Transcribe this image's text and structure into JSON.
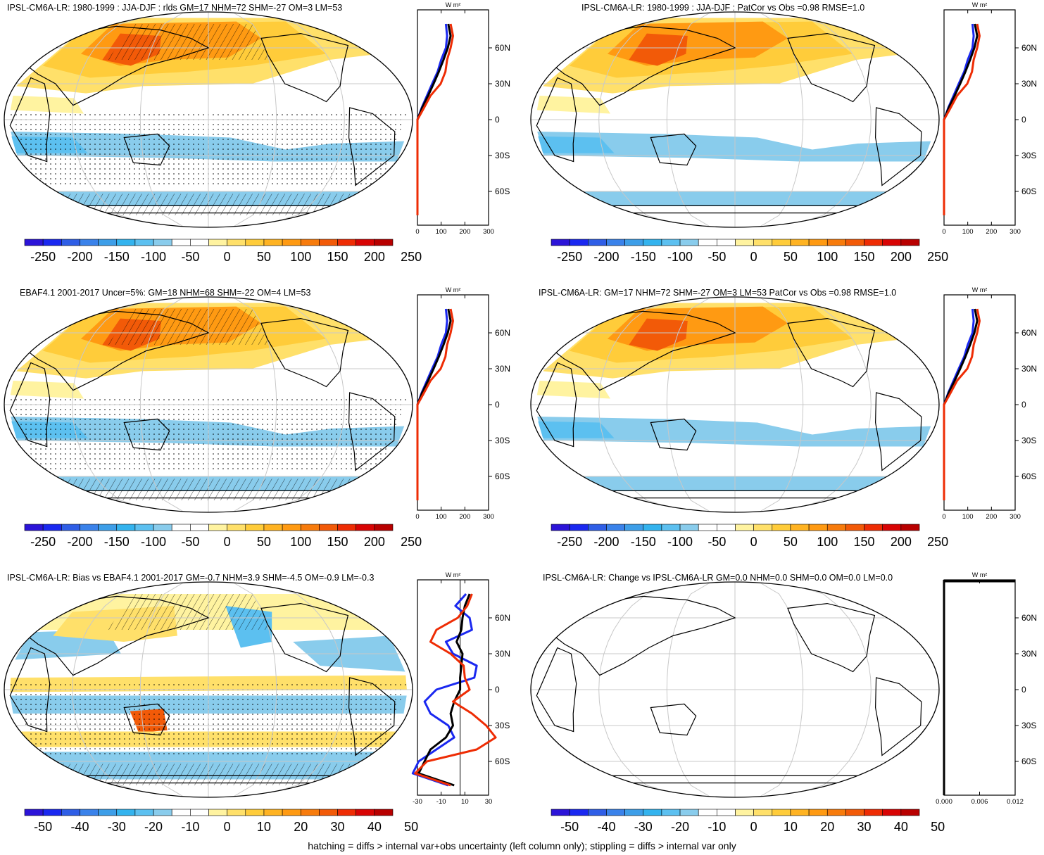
{
  "panels": [
    {
      "title": "IPSL-CM6A-LR: 1980-1999 : JJA-DJF : rlds GM=17 NHM=72 SHM=-27 OM=3 LM=53",
      "map": "seasonal",
      "hatching": true,
      "colorbar": {
        "labels": [
          "-250",
          "-200",
          "-150",
          "-100",
          "-50",
          "0",
          "50",
          "100",
          "150",
          "200",
          "250"
        ]
      },
      "profile": {
        "unit": "W m²",
        "xticks": [
          "0",
          "100",
          "200",
          "300"
        ],
        "yticks": [
          "60N",
          "30N",
          "0",
          "30S",
          "60S"
        ]
      }
    },
    {
      "title": "IPSL-CM6A-LR: 1980-1999 : JJA-DJF : PatCor vs Obs =0.98 RMSE=1.0",
      "map": "seasonal",
      "hatching": false,
      "colorbar": {
        "labels": [
          "-250",
          "-200",
          "-150",
          "-100",
          "-50",
          "0",
          "50",
          "100",
          "150",
          "200",
          "250"
        ]
      },
      "profile": {
        "unit": "W m²",
        "xticks": [
          "0",
          "100",
          "200",
          "300"
        ],
        "yticks": [
          "60N",
          "30N",
          "0",
          "30S",
          "60S"
        ]
      }
    },
    {
      "title": "EBAF4.1 2001-2017 Uncer=5%: GM=18 NHM=68 SHM=-22 OM=4 LM=53",
      "map": "seasonal",
      "hatching": true,
      "colorbar": {
        "labels": [
          "-250",
          "-200",
          "-150",
          "-100",
          "-50",
          "0",
          "50",
          "100",
          "150",
          "200",
          "250"
        ]
      },
      "profile": {
        "unit": "W m²",
        "xticks": [
          "0",
          "100",
          "200",
          "300"
        ],
        "yticks": [
          "60N",
          "30N",
          "0",
          "30S",
          "60S"
        ]
      }
    },
    {
      "title": "IPSL-CM6A-LR: GM=17 NHM=72 SHM=-27 OM=3 LM=53 PatCor vs Obs =0.98 RMSE=1.0",
      "map": "seasonal",
      "hatching": false,
      "colorbar": {
        "labels": [
          "-250",
          "-200",
          "-150",
          "-100",
          "-50",
          "0",
          "50",
          "100",
          "150",
          "200",
          "250"
        ]
      },
      "profile": {
        "unit": "W m²",
        "xticks": [
          "0",
          "100",
          "200",
          "300"
        ],
        "yticks": [
          "60N",
          "30N",
          "0",
          "30S",
          "60S"
        ]
      }
    },
    {
      "title": "IPSL-CM6A-LR: Bias vs EBAF4.1 2001-2017 GM=-0.7 NHM=3.9 SHM=-4.5 OM=-0.9 LM=-0.3",
      "map": "bias",
      "hatching": true,
      "colorbar": {
        "labels": [
          "-50",
          "-40",
          "-30",
          "-20",
          "-10",
          "0",
          "10",
          "20",
          "30",
          "40",
          "50"
        ]
      },
      "profile": {
        "unit": "W m²",
        "xticks": [
          "-30",
          "-10",
          "10",
          "30"
        ],
        "yticks": [
          "60N",
          "30N",
          "0",
          "30S",
          "60S"
        ]
      }
    },
    {
      "title": "IPSL-CM6A-LR: Change vs IPSL-CM6A-LR GM=0.0 NHM=0.0 SHM=0.0 OM=0.0 LM=0.0",
      "map": "blank",
      "hatching": false,
      "colorbar": {
        "labels": [
          "-50",
          "-40",
          "-30",
          "-20",
          "-10",
          "0",
          "10",
          "20",
          "30",
          "40",
          "50"
        ]
      },
      "profile": {
        "unit": "W m²",
        "xticks": [
          "0.000",
          "0.006",
          "0.012"
        ],
        "yticks": [
          "60N",
          "30N",
          "0",
          "30S",
          "60S"
        ]
      }
    }
  ],
  "colors": [
    "#2c14d8",
    "#1a28f0",
    "#2f5ee6",
    "#3a82ea",
    "#3d9ee8",
    "#33b3ee",
    "#5cc0f0",
    "#89ccec",
    "#ffffff",
    "#ffffff",
    "#fff3a0",
    "#ffe06a",
    "#ffcc3a",
    "#ffb322",
    "#ff9a12",
    "#f77b0c",
    "#f25a08",
    "#ee2c04",
    "#d80404",
    "#b80000"
  ],
  "footer": "hatching = diffs > internal var+obs uncertainty (left column only); stippling = diffs > internal var only",
  "chart_data": [
    {
      "type": "heatmap",
      "title": "IPSL-CM6A-LR: 1980-1999 : JJA-DJF : rlds GM=17 NHM=72 SHM=-27 OM=3 LM=53",
      "unit": "W m²",
      "zlim": [
        -250,
        250
      ],
      "zonal_mean": {
        "lat": [
          80,
          70,
          60,
          50,
          40,
          30,
          20,
          10,
          0,
          -10,
          -20,
          -30,
          -40,
          -50,
          -60,
          -70,
          -80
        ],
        "series": [
          {
            "values": [
              120,
              125,
              120,
              100,
              85,
              62,
              40,
              18,
              0,
              -10,
              -25,
              -40,
              -45,
              -40,
              -35,
              -20,
              -5
            ]
          },
          {
            "values": [
              130,
              140,
              128,
              110,
              90,
              68,
              45,
              20,
              0,
              -12,
              -28,
              -42,
              -48,
              -42,
              -36,
              -22,
              -6
            ]
          },
          {
            "values": [
              140,
              150,
              140,
              125,
              118,
              98,
              55,
              28,
              0,
              -15,
              -30,
              -45,
              -50,
              -45,
              -38,
              -24,
              -8
            ]
          }
        ]
      }
    },
    {
      "type": "heatmap",
      "title": "IPSL-CM6A-LR: 1980-1999 : JJA-DJF : PatCor vs Obs =0.98 RMSE=1.0",
      "unit": "W m²",
      "zlim": [
        -250,
        250
      ]
    },
    {
      "type": "heatmap",
      "title": "EBAF4.1 2001-2017 Uncer=5%: GM=18 NHM=68 SHM=-22 OM=4 LM=53",
      "unit": "W m²",
      "zlim": [
        -250,
        250
      ]
    },
    {
      "type": "heatmap",
      "title": "IPSL-CM6A-LR: GM=17 NHM=72 SHM=-27 OM=3 LM=53 PatCor vs Obs =0.98 RMSE=1.0",
      "unit": "W m²",
      "zlim": [
        -250,
        250
      ]
    },
    {
      "type": "heatmap",
      "title": "IPSL-CM6A-LR: Bias vs EBAF4.1 2001-2017 GM=-0.7 NHM=3.9 SHM=-4.5 OM=-0.9 LM=-0.3",
      "unit": "W m²",
      "zlim": [
        -50,
        50
      ]
    },
    {
      "type": "heatmap",
      "title": "IPSL-CM6A-LR: Change vs IPSL-CM6A-LR GM=0.0 NHM=0.0 SHM=0.0 OM=0.0 LM=0.0",
      "unit": "W m²",
      "zlim": [
        -50,
        50
      ]
    }
  ]
}
